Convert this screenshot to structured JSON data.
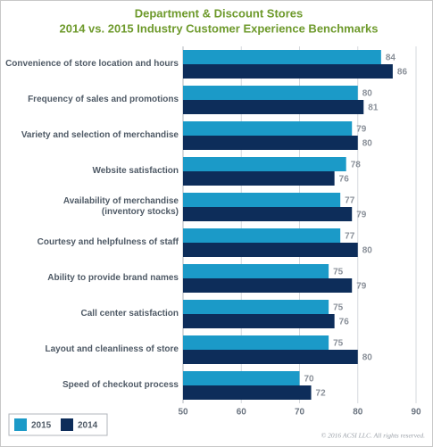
{
  "chart_data": {
    "type": "hbar",
    "title": "Department & Discount Stores",
    "subtitle": "2014 vs. 2015 Industry Customer Experience Benchmarks",
    "categories": [
      "Convenience of store location and hours",
      "Frequency of sales and promotions",
      "Variety and selection of merchandise",
      "Website satisfaction",
      "Availability of merchandise\n(inventory stocks)",
      "Courtesy and helpfulness of staff",
      "Ability to provide brand names",
      "Call center satisfaction",
      "Layout and cleanliness of store",
      "Speed of checkout process"
    ],
    "series": [
      {
        "name": "2015",
        "color": "#1b9ac8",
        "values": [
          84,
          80,
          79,
          78,
          77,
          77,
          75,
          75,
          75,
          70
        ]
      },
      {
        "name": "2014",
        "color": "#0d2d5a",
        "values": [
          86,
          81,
          80,
          76,
          79,
          80,
          79,
          76,
          80,
          72
        ]
      }
    ],
    "xlim": [
      50,
      90
    ],
    "xticks": [
      50,
      60,
      70,
      80,
      90
    ],
    "grid": true,
    "legend": "bottom-left",
    "note": "© 2016 ACSI LLC. All rights reserved."
  }
}
